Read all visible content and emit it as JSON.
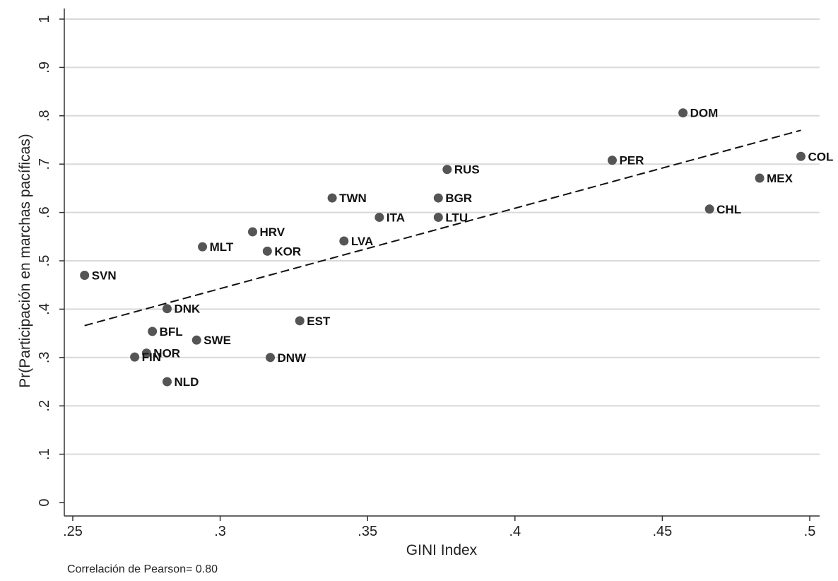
{
  "chart_data": {
    "type": "scatter",
    "xlabel": "GINI Index",
    "ylabel": "Pr(Participación en marchas pacíficas)",
    "xlim": [
      0.25,
      0.5
    ],
    "ylim": [
      0,
      1
    ],
    "x_ticks": [
      {
        "value": 0.25,
        "label": ".25"
      },
      {
        "value": 0.3,
        "label": ".3"
      },
      {
        "value": 0.35,
        "label": ".35"
      },
      {
        "value": 0.4,
        "label": ".4"
      },
      {
        "value": 0.45,
        "label": ".45"
      },
      {
        "value": 0.5,
        "label": ".5"
      }
    ],
    "y_ticks": [
      {
        "value": 0,
        "label": "0"
      },
      {
        "value": 0.1,
        "label": ".1"
      },
      {
        "value": 0.2,
        "label": ".2"
      },
      {
        "value": 0.3,
        "label": ".3"
      },
      {
        "value": 0.4,
        "label": ".4"
      },
      {
        "value": 0.5,
        "label": ".5"
      },
      {
        "value": 0.6,
        "label": ".6"
      },
      {
        "value": 0.7,
        "label": ".7"
      },
      {
        "value": 0.8,
        "label": ".8"
      },
      {
        "value": 0.9,
        "label": ".9"
      },
      {
        "value": 1,
        "label": "1"
      }
    ],
    "grid": "horizontal",
    "points": [
      {
        "label": "SVN",
        "x": 0.254,
        "y": 0.47
      },
      {
        "label": "DNK",
        "x": 0.282,
        "y": 0.401
      },
      {
        "label": "BFL",
        "x": 0.277,
        "y": 0.354
      },
      {
        "label": "NOR",
        "x": 0.275,
        "y": 0.309
      },
      {
        "label": "FIN",
        "x": 0.271,
        "y": 0.301
      },
      {
        "label": "NLD",
        "x": 0.282,
        "y": 0.25
      },
      {
        "label": "MLT",
        "x": 0.294,
        "y": 0.529
      },
      {
        "label": "SWE",
        "x": 0.292,
        "y": 0.336
      },
      {
        "label": "HRV",
        "x": 0.311,
        "y": 0.56
      },
      {
        "label": "KOR",
        "x": 0.316,
        "y": 0.52
      },
      {
        "label": "DNW",
        "x": 0.317,
        "y": 0.3
      },
      {
        "label": "EST",
        "x": 0.327,
        "y": 0.376
      },
      {
        "label": "TWN",
        "x": 0.338,
        "y": 0.63
      },
      {
        "label": "LVA",
        "x": 0.342,
        "y": 0.541
      },
      {
        "label": "ITA",
        "x": 0.354,
        "y": 0.59
      },
      {
        "label": "BGR",
        "x": 0.374,
        "y": 0.63
      },
      {
        "label": "LTU",
        "x": 0.374,
        "y": 0.59
      },
      {
        "label": "RUS",
        "x": 0.377,
        "y": 0.689
      },
      {
        "label": "PER",
        "x": 0.433,
        "y": 0.708
      },
      {
        "label": "DOM",
        "x": 0.457,
        "y": 0.806
      },
      {
        "label": "CHL",
        "x": 0.466,
        "y": 0.607
      },
      {
        "label": "MEX",
        "x": 0.483,
        "y": 0.671
      },
      {
        "label": "COL",
        "x": 0.497,
        "y": 0.716
      }
    ],
    "fit_line": {
      "style": "dashed",
      "x": [
        0.254,
        0.497
      ],
      "y": [
        0.366,
        0.77
      ]
    },
    "note": "Correlación de Pearson= 0.80"
  }
}
